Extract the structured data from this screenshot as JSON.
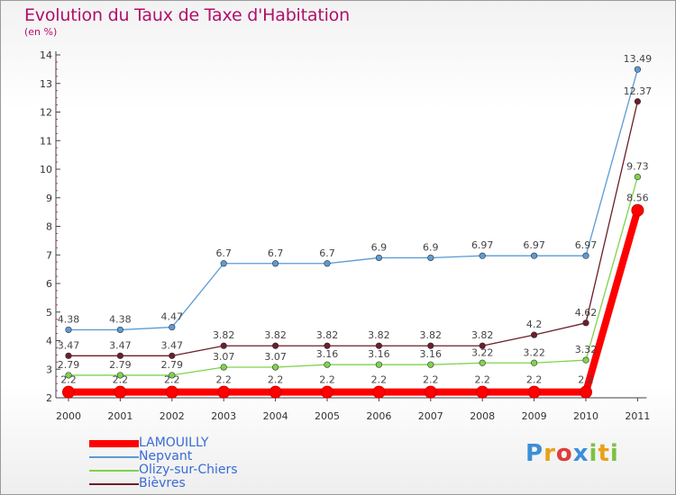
{
  "chart_data": {
    "type": "line",
    "title": "Evolution du Taux de Taxe d'Habitation",
    "subtitle": "(en %)",
    "categories": [
      "2000",
      "2001",
      "2002",
      "2003",
      "2004",
      "2005",
      "2006",
      "2007",
      "2008",
      "2009",
      "2010",
      "2011"
    ],
    "ylim": [
      2,
      14
    ],
    "yticks": [
      "2",
      "3",
      "4",
      "5",
      "6",
      "7",
      "8",
      "9",
      "10",
      "11",
      "12",
      "13",
      "14"
    ],
    "grid": false,
    "legend_position": "bottom-left",
    "series": [
      {
        "name": "LAMOUILLY",
        "color": "#ff0000",
        "highlight": true,
        "values": [
          2.2,
          2.2,
          2.2,
          2.2,
          2.2,
          2.2,
          2.2,
          2.2,
          2.2,
          2.2,
          2.2,
          8.56
        ],
        "labels": [
          "2.2",
          "2.2",
          "2.2",
          "2.2",
          "2.2",
          "2.2",
          "2.2",
          "2.2",
          "2.2",
          "2.2",
          "2.2",
          "8.56"
        ]
      },
      {
        "name": "Nepvant",
        "color": "#5b9bd5",
        "values": [
          4.38,
          4.38,
          4.47,
          6.7,
          6.7,
          6.7,
          6.9,
          6.9,
          6.97,
          6.97,
          6.97,
          13.49
        ],
        "labels": [
          "4.38",
          "4.38",
          "4.47",
          "6.7",
          "6.7",
          "6.7",
          "6.9",
          "6.9",
          "6.97",
          "6.97",
          "6.97",
          "13.49"
        ]
      },
      {
        "name": "Olizy-sur-Chiers",
        "color": "#7fd34d",
        "values": [
          2.79,
          2.79,
          2.79,
          3.07,
          3.07,
          3.16,
          3.16,
          3.16,
          3.22,
          3.22,
          3.32,
          9.73
        ],
        "labels": [
          "2.79",
          "2.79",
          "2.79",
          "3.07",
          "3.07",
          "3.16",
          "3.16",
          "3.16",
          "3.22",
          "3.22",
          "3.32",
          "9.73"
        ]
      },
      {
        "name": "Bièvres",
        "color": "#6b1f2a",
        "values": [
          3.47,
          3.47,
          3.47,
          3.82,
          3.82,
          3.82,
          3.82,
          3.82,
          3.82,
          4.2,
          4.62,
          12.37
        ],
        "labels": [
          "3.47",
          "3.47",
          "3.47",
          "3.82",
          "3.82",
          "3.82",
          "3.82",
          "3.82",
          "3.82",
          "4.2",
          "4.62",
          "12.37"
        ]
      }
    ]
  },
  "logo": {
    "letters": [
      "P",
      "r",
      "o",
      "x",
      "i",
      "t",
      "i"
    ],
    "colors": [
      "#3a8fd8",
      "#e8a21a",
      "#e03c3c",
      "#3a8fd8",
      "#7cc243",
      "#e8a21a",
      "#7cc243"
    ]
  }
}
